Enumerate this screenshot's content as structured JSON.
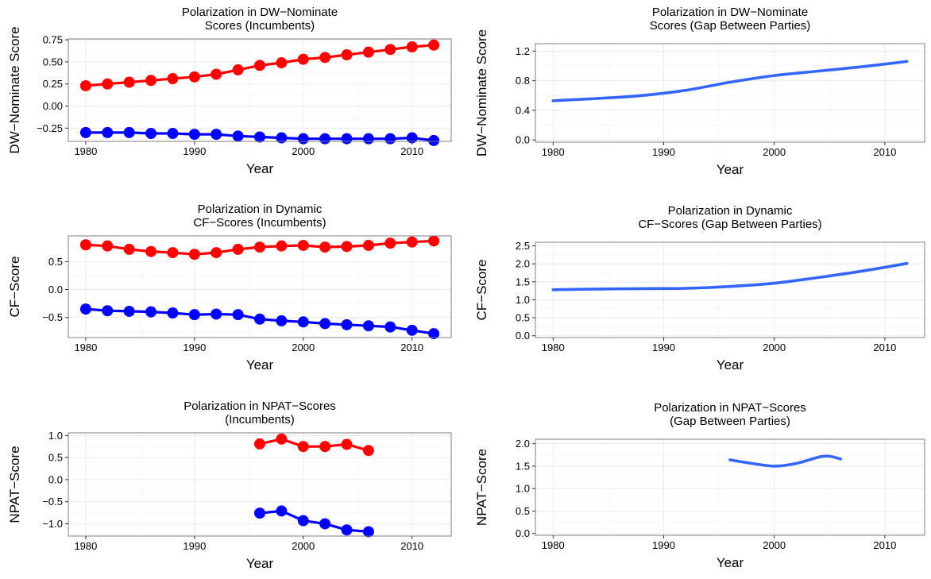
{
  "colors": {
    "republican": "#ff0000",
    "democrat": "#0000ff",
    "gap": "#3366ff",
    "grid_major": "#e6e6e6",
    "grid_minor": "#f2f2f2",
    "frame": "#7f7f7f"
  },
  "chart_data": [
    {
      "type": "line",
      "title": "Polarization in DW−Nominate",
      "subtitle": "Scores (Incumbents)",
      "xlabel": "Year",
      "ylabel": "DW−Nominate Score",
      "xlim": [
        1978.4,
        2013.6
      ],
      "ylim": [
        -0.4,
        0.76
      ],
      "xticks": [
        1980,
        1990,
        2000,
        2010
      ],
      "yticks": [
        -0.25,
        0,
        0.25,
        0.5,
        0.75
      ],
      "yticklabels": [
        "−0.25",
        "0.00",
        "0.25",
        "0.50",
        "0.75"
      ],
      "markers": true,
      "grid": true,
      "series": [
        {
          "color_key": "republican",
          "x": [
            1980,
            1982,
            1984,
            1986,
            1988,
            1990,
            1992,
            1994,
            1996,
            1998,
            2000,
            2002,
            2004,
            2006,
            2008,
            2010,
            2012
          ],
          "values": [
            0.23,
            0.25,
            0.27,
            0.29,
            0.31,
            0.33,
            0.36,
            0.41,
            0.46,
            0.49,
            0.53,
            0.55,
            0.58,
            0.61,
            0.64,
            0.67,
            0.69
          ]
        },
        {
          "color_key": "democrat",
          "x": [
            1980,
            1982,
            1984,
            1986,
            1988,
            1990,
            1992,
            1994,
            1996,
            1998,
            2000,
            2002,
            2004,
            2006,
            2008,
            2010,
            2012
          ],
          "values": [
            -0.3,
            -0.3,
            -0.3,
            -0.31,
            -0.31,
            -0.32,
            -0.32,
            -0.34,
            -0.35,
            -0.36,
            -0.37,
            -0.37,
            -0.37,
            -0.37,
            -0.37,
            -0.36,
            -0.39
          ]
        }
      ]
    },
    {
      "type": "line",
      "title": "Polarization in DW−Nominate",
      "subtitle": "Scores (Gap Between Parties)",
      "xlabel": "Year",
      "ylabel": "DW−Nominate Score",
      "xlim": [
        1978.4,
        2013.6
      ],
      "ylim": [
        -0.03,
        1.3
      ],
      "xticks": [
        1980,
        1990,
        2000,
        2010
      ],
      "yticks": [
        0,
        0.4,
        0.8,
        1.2
      ],
      "yticklabels": [
        "0.0",
        "0.4",
        "0.8",
        "1.2"
      ],
      "markers": false,
      "grid": true,
      "series": [
        {
          "color_key": "gap",
          "x": [
            1980,
            1984,
            1988,
            1992,
            1996,
            2000,
            2004,
            2008,
            2012
          ],
          "values": [
            0.53,
            0.56,
            0.6,
            0.67,
            0.78,
            0.87,
            0.93,
            0.99,
            1.06
          ]
        }
      ]
    },
    {
      "type": "line",
      "title": "Polarization in Dynamic",
      "subtitle": "CF−Scores (Incumbents)",
      "xlabel": "Year",
      "ylabel": "CF−Score",
      "xlim": [
        1978.4,
        2013.6
      ],
      "ylim": [
        -0.86,
        0.96
      ],
      "xticks": [
        1980,
        1990,
        2000,
        2010
      ],
      "yticks": [
        -0.5,
        0,
        0.5
      ],
      "yticklabels": [
        "−0.5",
        "0.0",
        "0.5"
      ],
      "markers": true,
      "grid": true,
      "series": [
        {
          "color_key": "republican",
          "x": [
            1980,
            1982,
            1984,
            1986,
            1988,
            1990,
            1992,
            1994,
            1996,
            1998,
            2000,
            2002,
            2004,
            2006,
            2008,
            2010,
            2012
          ],
          "values": [
            0.8,
            0.78,
            0.72,
            0.68,
            0.66,
            0.63,
            0.66,
            0.72,
            0.76,
            0.78,
            0.79,
            0.76,
            0.77,
            0.79,
            0.83,
            0.85,
            0.87
          ]
        },
        {
          "color_key": "democrat",
          "x": [
            1980,
            1982,
            1984,
            1986,
            1988,
            1990,
            1992,
            1994,
            1996,
            1998,
            2000,
            2002,
            2004,
            2006,
            2008,
            2010,
            2012
          ],
          "values": [
            -0.35,
            -0.38,
            -0.39,
            -0.4,
            -0.42,
            -0.45,
            -0.44,
            -0.45,
            -0.53,
            -0.56,
            -0.58,
            -0.61,
            -0.63,
            -0.65,
            -0.67,
            -0.73,
            -0.79
          ]
        }
      ]
    },
    {
      "type": "line",
      "title": "Polarization in Dynamic",
      "subtitle": "CF−Scores (Gap Between Parties)",
      "xlabel": "Year",
      "ylabel": "CF−Score",
      "xlim": [
        1978.4,
        2013.6
      ],
      "ylim": [
        -0.05,
        2.6
      ],
      "xticks": [
        1980,
        1990,
        2000,
        2010
      ],
      "yticks": [
        0,
        0.5,
        1,
        1.5,
        2,
        2.5
      ],
      "yticklabels": [
        "0.0",
        "0.5",
        "1.0",
        "1.5",
        "2.0",
        "2.5"
      ],
      "markers": false,
      "grid": true,
      "series": [
        {
          "color_key": "gap",
          "x": [
            1980,
            1984,
            1988,
            1992,
            1996,
            2000,
            2004,
            2008,
            2012
          ],
          "values": [
            1.28,
            1.3,
            1.31,
            1.32,
            1.37,
            1.46,
            1.62,
            1.8,
            2.01
          ]
        }
      ]
    },
    {
      "type": "line",
      "title": "Polarization in NPAT−Scores",
      "subtitle": "(Incumbents)",
      "xlabel": "Year",
      "ylabel": "NPAT−Score",
      "xlim": [
        1978.4,
        2013.6
      ],
      "ylim": [
        -1.28,
        1.06
      ],
      "xticks": [
        1980,
        1990,
        2000,
        2010
      ],
      "yticks": [
        -1,
        -0.5,
        0,
        0.5,
        1
      ],
      "yticklabels": [
        "−1.0",
        "−0.5",
        "0.0",
        "0.5",
        "1.0"
      ],
      "markers": true,
      "grid": true,
      "series": [
        {
          "color_key": "republican",
          "x": [
            1996,
            1998,
            2000,
            2002,
            2004,
            2006
          ],
          "values": [
            0.81,
            0.92,
            0.75,
            0.75,
            0.8,
            0.66
          ]
        },
        {
          "color_key": "democrat",
          "x": [
            1996,
            1998,
            2000,
            2002,
            2004,
            2006
          ],
          "values": [
            -0.76,
            -0.71,
            -0.93,
            -1.0,
            -1.14,
            -1.18
          ]
        }
      ]
    },
    {
      "type": "line",
      "title": "Polarization in NPAT−Scores",
      "subtitle": "(Gap Between Parties)",
      "xlabel": "Year",
      "ylabel": "NPAT−Score",
      "xlim": [
        1978.4,
        2013.6
      ],
      "ylim": [
        -0.04,
        2.1
      ],
      "xticks": [
        1980,
        1990,
        2000,
        2010
      ],
      "yticks": [
        0,
        0.5,
        1,
        1.5,
        2
      ],
      "yticklabels": [
        "0.0",
        "0.5",
        "1.0",
        "1.5",
        "2.0"
      ],
      "markers": false,
      "grid": true,
      "series": [
        {
          "color_key": "gap",
          "x": [
            1996,
            1998,
            2000,
            2002,
            2004,
            2005,
            2006
          ],
          "values": [
            1.64,
            1.56,
            1.5,
            1.56,
            1.7,
            1.72,
            1.66
          ]
        }
      ]
    }
  ]
}
